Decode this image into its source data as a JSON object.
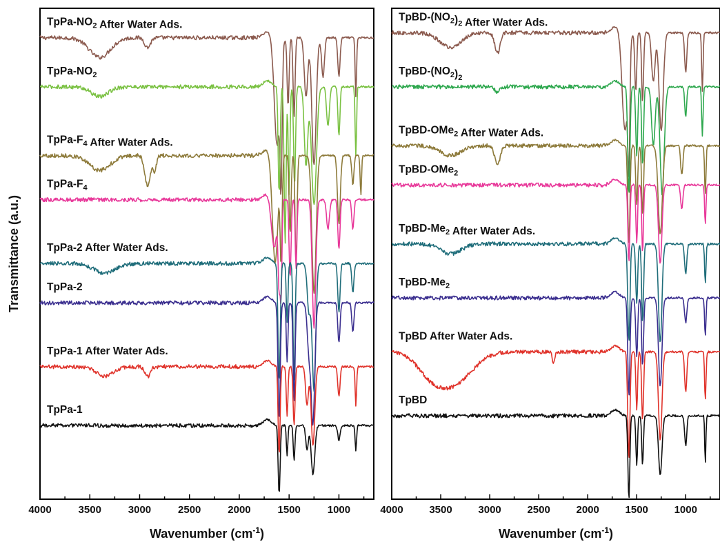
{
  "chart_data": [
    {
      "type": "line",
      "panel": "left",
      "xlabel": "Wavenumber (cm-1)",
      "ylabel": "Transmittance (a.u.)",
      "xlim": [
        4000,
        650
      ],
      "x_reversed": true,
      "xticks": [
        4000,
        3500,
        3000,
        2500,
        2000,
        1500,
        1000
      ],
      "series": [
        {
          "name": "TpPa-NO2 After Water Ads.",
          "label": {
            "pre": "TpPa-NO",
            "sub": "2",
            "post": " After Water Ads."
          },
          "color": "#8b5a4e",
          "baseline": 0.94,
          "bands": [
            [
              3400,
              0.04,
              150
            ],
            [
              2920,
              0.02,
              40
            ],
            [
              1620,
              0.22,
              40
            ],
            [
              1580,
              0.24,
              14
            ],
            [
              1510,
              0.14,
              14
            ],
            [
              1450,
              0.16,
              14
            ],
            [
              1330,
              0.12,
              25
            ],
            [
              1250,
              0.26,
              30
            ],
            [
              1160,
              0.08,
              20
            ],
            [
              1000,
              0.08,
              16
            ],
            [
              830,
              0.12,
              10
            ]
          ]
        },
        {
          "name": "TpPa-NO2",
          "label": {
            "pre": "TpPa-NO",
            "sub": "2",
            "post": ""
          },
          "color": "#7ac142",
          "baseline": 0.84,
          "bands": [
            [
              3400,
              0.02,
              120
            ],
            [
              1600,
              0.22,
              14
            ],
            [
              1540,
              0.32,
              14
            ],
            [
              1500,
              0.22,
              12
            ],
            [
              1445,
              0.2,
              14
            ],
            [
              1330,
              0.16,
              25
            ],
            [
              1250,
              0.24,
              35
            ],
            [
              1110,
              0.08,
              20
            ],
            [
              1000,
              0.1,
              14
            ],
            [
              830,
              0.14,
              10
            ]
          ]
        },
        {
          "name": "TpPa-F4 After Water Ads.",
          "label": {
            "pre": "TpPa-F",
            "sub": "4",
            "post": " After Water Ads."
          },
          "color": "#8d7a3a",
          "baseline": 0.7,
          "bands": [
            [
              3400,
              0.03,
              150
            ],
            [
              2920,
              0.06,
              40
            ],
            [
              2850,
              0.03,
              25
            ],
            [
              1640,
              0.22,
              40
            ],
            [
              1580,
              0.2,
              14
            ],
            [
              1490,
              0.16,
              14
            ],
            [
              1430,
              0.22,
              14
            ],
            [
              1250,
              0.28,
              30
            ],
            [
              1000,
              0.14,
              20
            ],
            [
              860,
              0.06,
              15
            ],
            [
              780,
              0.08,
              10
            ]
          ]
        },
        {
          "name": "TpPa-F4",
          "label": {
            "pre": "TpPa-F",
            "sub": "4",
            "post": ""
          },
          "color": "#e8399a",
          "baseline": 0.61,
          "bands": [
            [
              1650,
              0.1,
              40
            ],
            [
              1600,
              0.16,
              14
            ],
            [
              1580,
              0.18,
              12
            ],
            [
              1490,
              0.16,
              14
            ],
            [
              1430,
              0.14,
              12
            ],
            [
              1250,
              0.26,
              25
            ],
            [
              1110,
              0.06,
              20
            ],
            [
              1000,
              0.1,
              16
            ],
            [
              860,
              0.06,
              15
            ]
          ]
        },
        {
          "name": "TpPa-2 After Water Ads.",
          "label": {
            "pre": "TpPa-2 After Water Ads.",
            "sub": "",
            "post": ""
          },
          "color": "#1f6d7a",
          "baseline": 0.48,
          "bands": [
            [
              3350,
              0.02,
              150
            ],
            [
              1600,
              0.24,
              16
            ],
            [
              1520,
              0.12,
              12
            ],
            [
              1450,
              0.24,
              14
            ],
            [
              1300,
              0.1,
              25
            ],
            [
              1250,
              0.26,
              25
            ],
            [
              1000,
              0.1,
              16
            ],
            [
              860,
              0.06,
              15
            ]
          ]
        },
        {
          "name": "TpPa-2",
          "label": {
            "pre": "TpPa-2",
            "sub": "",
            "post": ""
          },
          "color": "#3b2f8f",
          "baseline": 0.4,
          "bands": [
            [
              1600,
              0.24,
              16
            ],
            [
              1520,
              0.12,
              12
            ],
            [
              1450,
              0.2,
              14
            ],
            [
              1300,
              0.1,
              25
            ],
            [
              1260,
              0.24,
              25
            ],
            [
              1000,
              0.08,
              16
            ],
            [
              860,
              0.06,
              15
            ]
          ]
        },
        {
          "name": "TpPa-1 After Water Ads.",
          "label": {
            "pre": "TpPa-1 After Water Ads.",
            "sub": "",
            "post": ""
          },
          "color": "#e0332b",
          "baseline": 0.27,
          "bands": [
            [
              3350,
              0.02,
              120
            ],
            [
              2920,
              0.02,
              40
            ],
            [
              1600,
              0.18,
              14
            ],
            [
              1520,
              0.1,
              12
            ],
            [
              1450,
              0.12,
              14
            ],
            [
              1320,
              0.08,
              20
            ],
            [
              1260,
              0.16,
              25
            ],
            [
              1000,
              0.06,
              16
            ],
            [
              830,
              0.08,
              10
            ]
          ]
        },
        {
          "name": "TpPa-1",
          "label": {
            "pre": "TpPa-1",
            "sub": "",
            "post": ""
          },
          "color": "#111111",
          "baseline": 0.15,
          "bands": [
            [
              1600,
              0.14,
              14
            ],
            [
              1520,
              0.06,
              10
            ],
            [
              1450,
              0.07,
              12
            ],
            [
              1320,
              0.05,
              18
            ],
            [
              1260,
              0.1,
              25
            ],
            [
              1000,
              0.03,
              16
            ],
            [
              830,
              0.05,
              10
            ]
          ]
        }
      ]
    },
    {
      "type": "line",
      "panel": "right",
      "xlabel": "Wavenumber (cm-1)",
      "xlim": [
        4000,
        650
      ],
      "x_reversed": true,
      "xticks": [
        4000,
        3500,
        3000,
        2500,
        2000,
        1500,
        1000
      ],
      "series": [
        {
          "name": "TpBD-(NO2)2 After Water Ads.",
          "label": {
            "pre": "TpBD-(NO",
            "sub": "2",
            "post": ")",
            "sub2": "2",
            "post2": " After Water Ads."
          },
          "color": "#8b5a4e",
          "baseline": 0.95,
          "bands": [
            [
              3400,
              0.03,
              150
            ],
            [
              2920,
              0.04,
              40
            ],
            [
              1620,
              0.2,
              40
            ],
            [
              1580,
              0.22,
              14
            ],
            [
              1510,
              0.12,
              14
            ],
            [
              1440,
              0.14,
              14
            ],
            [
              1330,
              0.1,
              25
            ],
            [
              1250,
              0.2,
              30
            ],
            [
              1000,
              0.08,
              16
            ],
            [
              830,
              0.12,
              10
            ]
          ]
        },
        {
          "name": "TpBD-(NO2)2",
          "label": {
            "pre": "TpBD-(NO",
            "sub": "2",
            "post": ")",
            "sub2": "2",
            "post2": ""
          },
          "color": "#2fa84f",
          "baseline": 0.84,
          "bands": [
            [
              2920,
              0.01,
              40
            ],
            [
              1580,
              0.22,
              16
            ],
            [
              1500,
              0.14,
              14
            ],
            [
              1440,
              0.16,
              14
            ],
            [
              1330,
              0.12,
              25
            ],
            [
              1240,
              0.22,
              30
            ],
            [
              1000,
              0.06,
              14
            ],
            [
              830,
              0.1,
              10
            ]
          ]
        },
        {
          "name": "TpBD-OMe2 After Water Ads.",
          "label": {
            "pre": "TpBD-OMe",
            "sub": "2",
            "post": " After Water Ads."
          },
          "color": "#8d7a3a",
          "baseline": 0.72,
          "bands": [
            [
              3400,
              0.02,
              150
            ],
            [
              2920,
              0.04,
              40
            ],
            [
              1580,
              0.2,
              16
            ],
            [
              1500,
              0.12,
              14
            ],
            [
              1440,
              0.14,
              14
            ],
            [
              1260,
              0.18,
              30
            ],
            [
              1040,
              0.06,
              16
            ],
            [
              800,
              0.1,
              10
            ]
          ]
        },
        {
          "name": "TpBD-OMe2",
          "label": {
            "pre": "TpBD-OMe",
            "sub": "2",
            "post": ""
          },
          "color": "#e8399a",
          "baseline": 0.64,
          "bands": [
            [
              1580,
              0.16,
              14
            ],
            [
              1500,
              0.12,
              12
            ],
            [
              1440,
              0.14,
              12
            ],
            [
              1260,
              0.16,
              25
            ],
            [
              1040,
              0.05,
              16
            ],
            [
              800,
              0.08,
              10
            ]
          ]
        },
        {
          "name": "TpBD-Me2 After Water Ads.",
          "label": {
            "pre": "TpBD-Me",
            "sub": "2",
            "post": " After Water Ads."
          },
          "color": "#1f6d7a",
          "baseline": 0.52,
          "bands": [
            [
              3400,
              0.02,
              150
            ],
            [
              1580,
              0.2,
              16
            ],
            [
              1500,
              0.12,
              14
            ],
            [
              1440,
              0.16,
              14
            ],
            [
              1260,
              0.2,
              25
            ],
            [
              1000,
              0.06,
              16
            ],
            [
              800,
              0.08,
              10
            ]
          ]
        },
        {
          "name": "TpBD-Me2",
          "label": {
            "pre": "TpBD-Me",
            "sub": "2",
            "post": ""
          },
          "color": "#3b2f8f",
          "baseline": 0.41,
          "bands": [
            [
              1580,
              0.2,
              16
            ],
            [
              1500,
              0.12,
              14
            ],
            [
              1440,
              0.14,
              14
            ],
            [
              1260,
              0.18,
              25
            ],
            [
              1000,
              0.05,
              16
            ],
            [
              800,
              0.08,
              10
            ]
          ]
        },
        {
          "name": "TpBD After Water Ads.",
          "label": {
            "pre": "TpBD After Water Ads.",
            "sub": "",
            "post": ""
          },
          "color": "#e0332b",
          "baseline": 0.3,
          "bands": [
            [
              3600,
              0.04,
              200
            ],
            [
              3350,
              0.06,
              250
            ],
            [
              2350,
              0.02,
              20
            ],
            [
              1580,
              0.22,
              16
            ],
            [
              1500,
              0.12,
              12
            ],
            [
              1440,
              0.14,
              14
            ],
            [
              1260,
              0.18,
              25
            ],
            [
              1000,
              0.08,
              16
            ],
            [
              800,
              0.1,
              10
            ]
          ]
        },
        {
          "name": "TpBD",
          "label": {
            "pre": "TpBD",
            "sub": "",
            "post": ""
          },
          "color": "#111111",
          "baseline": 0.17,
          "bands": [
            [
              1580,
              0.17,
              14
            ],
            [
              1500,
              0.1,
              12
            ],
            [
              1440,
              0.1,
              12
            ],
            [
              1260,
              0.12,
              25
            ],
            [
              1000,
              0.06,
              16
            ],
            [
              800,
              0.1,
              8
            ]
          ]
        }
      ]
    }
  ]
}
